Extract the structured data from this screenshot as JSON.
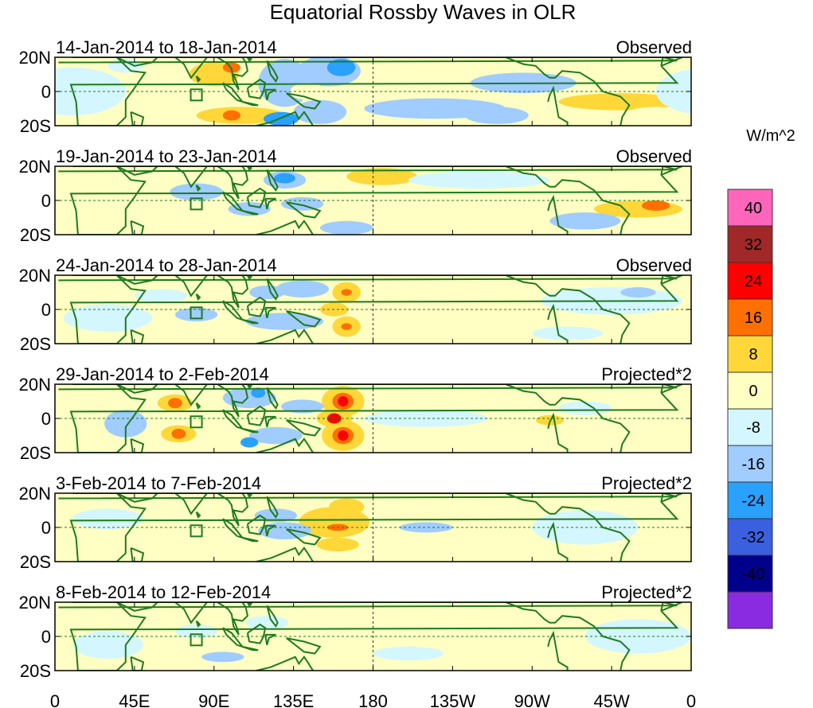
{
  "chart_data": {
    "type": "heatmap",
    "title": "Equatorial Rossby Waves in OLR",
    "units": "W/m^2",
    "x_ticks": [
      "0",
      "45E",
      "90E",
      "135E",
      "180",
      "135W",
      "90W",
      "45W",
      "0"
    ],
    "y_ticks": [
      "20N",
      "0",
      "20S"
    ],
    "colorbar": {
      "labels": [
        "40",
        "32",
        "24",
        "16",
        "8",
        "0",
        "-8",
        "-16",
        "-24",
        "-32",
        "-40"
      ],
      "colors": [
        "#ff66bb",
        "#a02828",
        "#ff0000",
        "#ff7000",
        "#ffd738",
        "#ffffc4",
        "#d4f6ff",
        "#a0ccff",
        "#2aa0ff",
        "#3a60e0",
        "#00008c",
        "#8a2be2"
      ]
    },
    "panels": [
      {
        "period": "14-Jan-2014 to 18-Jan-2014",
        "type": "Observed",
        "features": [
          {
            "lon": 90,
            "lat": 10,
            "rx": 14,
            "ry": 7,
            "v": 10
          },
          {
            "lon": 100,
            "lat": 14,
            "rx": 5,
            "ry": 3,
            "v": 20
          },
          {
            "lon": 105,
            "lat": -14,
            "rx": 25,
            "ry": 5,
            "v": 10
          },
          {
            "lon": 100,
            "lat": -14,
            "rx": 5,
            "ry": 3,
            "v": 22
          },
          {
            "lon": 50,
            "lat": -16,
            "rx": 12,
            "ry": 4,
            "v": 6
          },
          {
            "lon": 130,
            "lat": 5,
            "rx": 15,
            "ry": 14,
            "v": -12
          },
          {
            "lon": 150,
            "lat": -12,
            "rx": 15,
            "ry": 7,
            "v": -14
          },
          {
            "lon": 128,
            "lat": -16,
            "rx": 10,
            "ry": 4,
            "v": -22
          },
          {
            "lon": 155,
            "lat": 12,
            "rx": 18,
            "ry": 9,
            "v": -10
          },
          {
            "lon": 162,
            "lat": 14,
            "rx": 8,
            "ry": 5,
            "v": -20
          },
          {
            "lon": 143,
            "lat": 0,
            "rx": 10,
            "ry": 5,
            "v": 6
          },
          {
            "lon": 215,
            "lat": -10,
            "rx": 40,
            "ry": 6,
            "v": -8
          },
          {
            "lon": 265,
            "lat": 5,
            "rx": 30,
            "ry": 6,
            "v": -8
          },
          {
            "lon": 250,
            "lat": -14,
            "rx": 18,
            "ry": 5,
            "v": -12
          },
          {
            "lon": 320,
            "lat": -6,
            "rx": 35,
            "ry": 5,
            "v": 10
          },
          {
            "lon": 340,
            "lat": -14,
            "rx": 18,
            "ry": 5,
            "v": 6
          },
          {
            "lon": 325,
            "lat": 10,
            "rx": 15,
            "ry": 4,
            "v": 6
          },
          {
            "lon": 10,
            "lat": 0,
            "rx": 30,
            "ry": 14,
            "v": -6
          },
          {
            "lon": 40,
            "lat": 15,
            "rx": 10,
            "ry": 4,
            "v": -6
          }
        ]
      },
      {
        "period": "19-Jan-2014 to 23-Jan-2014",
        "type": "Observed",
        "features": [
          {
            "lon": 185,
            "lat": 14,
            "rx": 20,
            "ry": 5,
            "v": 8
          },
          {
            "lon": 190,
            "lat": -7,
            "rx": 25,
            "ry": 6,
            "v": 7
          },
          {
            "lon": 145,
            "lat": 5,
            "rx": 18,
            "ry": 6,
            "v": 6
          },
          {
            "lon": 130,
            "lat": 12,
            "rx": 12,
            "ry": 5,
            "v": -12
          },
          {
            "lon": 130,
            "lat": 13,
            "rx": 6,
            "ry": 3,
            "v": -20
          },
          {
            "lon": 140,
            "lat": -2,
            "rx": 12,
            "ry": 4,
            "v": -12
          },
          {
            "lon": 110,
            "lat": -5,
            "rx": 12,
            "ry": 4,
            "v": -10
          },
          {
            "lon": 80,
            "lat": 5,
            "rx": 15,
            "ry": 5,
            "v": -10
          },
          {
            "lon": 165,
            "lat": -16,
            "rx": 15,
            "ry": 4,
            "v": -8
          },
          {
            "lon": 60,
            "lat": -14,
            "rx": 12,
            "ry": 4,
            "v": 6
          },
          {
            "lon": 30,
            "lat": -16,
            "rx": 10,
            "ry": 3,
            "v": 6
          },
          {
            "lon": 45,
            "lat": 5,
            "rx": 8,
            "ry": 4,
            "v": 6
          },
          {
            "lon": 330,
            "lat": -5,
            "rx": 25,
            "ry": 5,
            "v": 10
          },
          {
            "lon": 340,
            "lat": -3,
            "rx": 8,
            "ry": 3,
            "v": 16
          },
          {
            "lon": 300,
            "lat": -12,
            "rx": 20,
            "ry": 5,
            "v": -8
          },
          {
            "lon": 240,
            "lat": 12,
            "rx": 40,
            "ry": 5,
            "v": -6
          },
          {
            "lon": 350,
            "lat": 12,
            "rx": 15,
            "ry": 5,
            "v": 6
          }
        ]
      },
      {
        "period": "24-Jan-2014 to 28-Jan-2014",
        "type": "Observed",
        "features": [
          {
            "lon": 165,
            "lat": 10,
            "rx": 8,
            "ry": 6,
            "v": 10
          },
          {
            "lon": 165,
            "lat": 10,
            "rx": 3,
            "ry": 2,
            "v": 18
          },
          {
            "lon": 165,
            "lat": -10,
            "rx": 8,
            "ry": 6,
            "v": 10
          },
          {
            "lon": 165,
            "lat": -10,
            "rx": 3,
            "ry": 2,
            "v": 18
          },
          {
            "lon": 158,
            "lat": 0,
            "rx": 8,
            "ry": 4,
            "v": 10
          },
          {
            "lon": 130,
            "lat": -7,
            "rx": 22,
            "ry": 5,
            "v": -12
          },
          {
            "lon": 140,
            "lat": 12,
            "rx": 15,
            "ry": 5,
            "v": -10
          },
          {
            "lon": 120,
            "lat": 10,
            "rx": 10,
            "ry": 4,
            "v": -10
          },
          {
            "lon": 80,
            "lat": -3,
            "rx": 12,
            "ry": 4,
            "v": -10
          },
          {
            "lon": 30,
            "lat": -5,
            "rx": 25,
            "ry": 8,
            "v": -6
          },
          {
            "lon": 60,
            "lat": 8,
            "rx": 15,
            "ry": 4,
            "v": -6
          },
          {
            "lon": 315,
            "lat": 5,
            "rx": 40,
            "ry": 8,
            "v": -6
          },
          {
            "lon": 330,
            "lat": 10,
            "rx": 10,
            "ry": 3,
            "v": -10
          },
          {
            "lon": 290,
            "lat": -14,
            "rx": 20,
            "ry": 4,
            "v": -6
          },
          {
            "lon": 220,
            "lat": 0,
            "rx": 30,
            "ry": 8,
            "v": 4
          }
        ]
      },
      {
        "period": "29-Jan-2014 to 2-Feb-2014",
        "type": "Projected*2",
        "features": [
          {
            "lon": 163,
            "lat": 10,
            "rx": 12,
            "ry": 9,
            "v": 12
          },
          {
            "lon": 163,
            "lat": 10,
            "rx": 6,
            "ry": 5,
            "v": 20
          },
          {
            "lon": 163,
            "lat": 10,
            "rx": 3,
            "ry": 3,
            "v": 28
          },
          {
            "lon": 163,
            "lat": -10,
            "rx": 12,
            "ry": 9,
            "v": 12
          },
          {
            "lon": 163,
            "lat": -10,
            "rx": 6,
            "ry": 5,
            "v": 20
          },
          {
            "lon": 163,
            "lat": -10,
            "rx": 3,
            "ry": 3,
            "v": 28
          },
          {
            "lon": 158,
            "lat": 0,
            "rx": 10,
            "ry": 5,
            "v": 14
          },
          {
            "lon": 158,
            "lat": 0,
            "rx": 4,
            "ry": 3,
            "v": 26
          },
          {
            "lon": 68,
            "lat": 9,
            "rx": 10,
            "ry": 5,
            "v": 12
          },
          {
            "lon": 68,
            "lat": 9,
            "rx": 4,
            "ry": 3,
            "v": 20
          },
          {
            "lon": 70,
            "lat": -9,
            "rx": 10,
            "ry": 5,
            "v": 12
          },
          {
            "lon": 70,
            "lat": -9,
            "rx": 4,
            "ry": 3,
            "v": 20
          },
          {
            "lon": 125,
            "lat": -10,
            "rx": 15,
            "ry": 5,
            "v": -12
          },
          {
            "lon": 110,
            "lat": -14,
            "rx": 5,
            "ry": 3,
            "v": -20
          },
          {
            "lon": 110,
            "lat": 12,
            "rx": 15,
            "ry": 6,
            "v": -10
          },
          {
            "lon": 115,
            "lat": 15,
            "rx": 4,
            "ry": 3,
            "v": -18
          },
          {
            "lon": 140,
            "lat": 7,
            "rx": 12,
            "ry": 4,
            "v": -8
          },
          {
            "lon": 40,
            "lat": -3,
            "rx": 12,
            "ry": 8,
            "v": -8
          },
          {
            "lon": 210,
            "lat": 0,
            "rx": 35,
            "ry": 5,
            "v": -6
          },
          {
            "lon": 280,
            "lat": -1,
            "rx": 8,
            "ry": 3,
            "v": 10
          },
          {
            "lon": 300,
            "lat": 6,
            "rx": 15,
            "ry": 4,
            "v": -6
          },
          {
            "lon": 240,
            "lat": 10,
            "rx": 30,
            "ry": 4,
            "v": 4
          }
        ]
      },
      {
        "period": "3-Feb-2014 to 7-Feb-2014",
        "type": "Projected*2",
        "features": [
          {
            "lon": 158,
            "lat": 3,
            "rx": 20,
            "ry": 9,
            "v": 10
          },
          {
            "lon": 160,
            "lat": 0,
            "rx": 6,
            "ry": 2,
            "v": 18
          },
          {
            "lon": 165,
            "lat": 12,
            "rx": 10,
            "ry": 5,
            "v": 8
          },
          {
            "lon": 160,
            "lat": -10,
            "rx": 12,
            "ry": 4,
            "v": 8
          },
          {
            "lon": 130,
            "lat": -2,
            "rx": 15,
            "ry": 5,
            "v": -12
          },
          {
            "lon": 125,
            "lat": 7,
            "rx": 12,
            "ry": 4,
            "v": -10
          },
          {
            "lon": 60,
            "lat": -3,
            "rx": 20,
            "ry": 5,
            "v": 6
          },
          {
            "lon": 210,
            "lat": 0,
            "rx": 15,
            "ry": 3,
            "v": -10
          },
          {
            "lon": 300,
            "lat": 0,
            "rx": 30,
            "ry": 10,
            "v": -6
          },
          {
            "lon": 100,
            "lat": 10,
            "rx": 12,
            "ry": 5,
            "v": 5
          },
          {
            "lon": 30,
            "lat": 5,
            "rx": 20,
            "ry": 6,
            "v": -6
          }
        ]
      },
      {
        "period": "8-Feb-2014 to 12-Feb-2014",
        "type": "Projected*2",
        "features": [
          {
            "lon": 145,
            "lat": -5,
            "rx": 20,
            "ry": 6,
            "v": 6
          },
          {
            "lon": 105,
            "lat": -3,
            "rx": 18,
            "ry": 4,
            "v": 6
          },
          {
            "lon": 95,
            "lat": -12,
            "rx": 12,
            "ry": 3,
            "v": -10
          },
          {
            "lon": 80,
            "lat": 3,
            "rx": 12,
            "ry": 4,
            "v": -6
          },
          {
            "lon": 120,
            "lat": 8,
            "rx": 12,
            "ry": 4,
            "v": -6
          },
          {
            "lon": 160,
            "lat": 10,
            "rx": 12,
            "ry": 4,
            "v": 4
          },
          {
            "lon": 250,
            "lat": 0,
            "rx": 40,
            "ry": 8,
            "v": 4
          },
          {
            "lon": 330,
            "lat": 0,
            "rx": 30,
            "ry": 10,
            "v": -6
          },
          {
            "lon": 30,
            "lat": -5,
            "rx": 20,
            "ry": 8,
            "v": -6
          },
          {
            "lon": 200,
            "lat": -10,
            "rx": 20,
            "ry": 4,
            "v": -5
          }
        ]
      }
    ]
  }
}
